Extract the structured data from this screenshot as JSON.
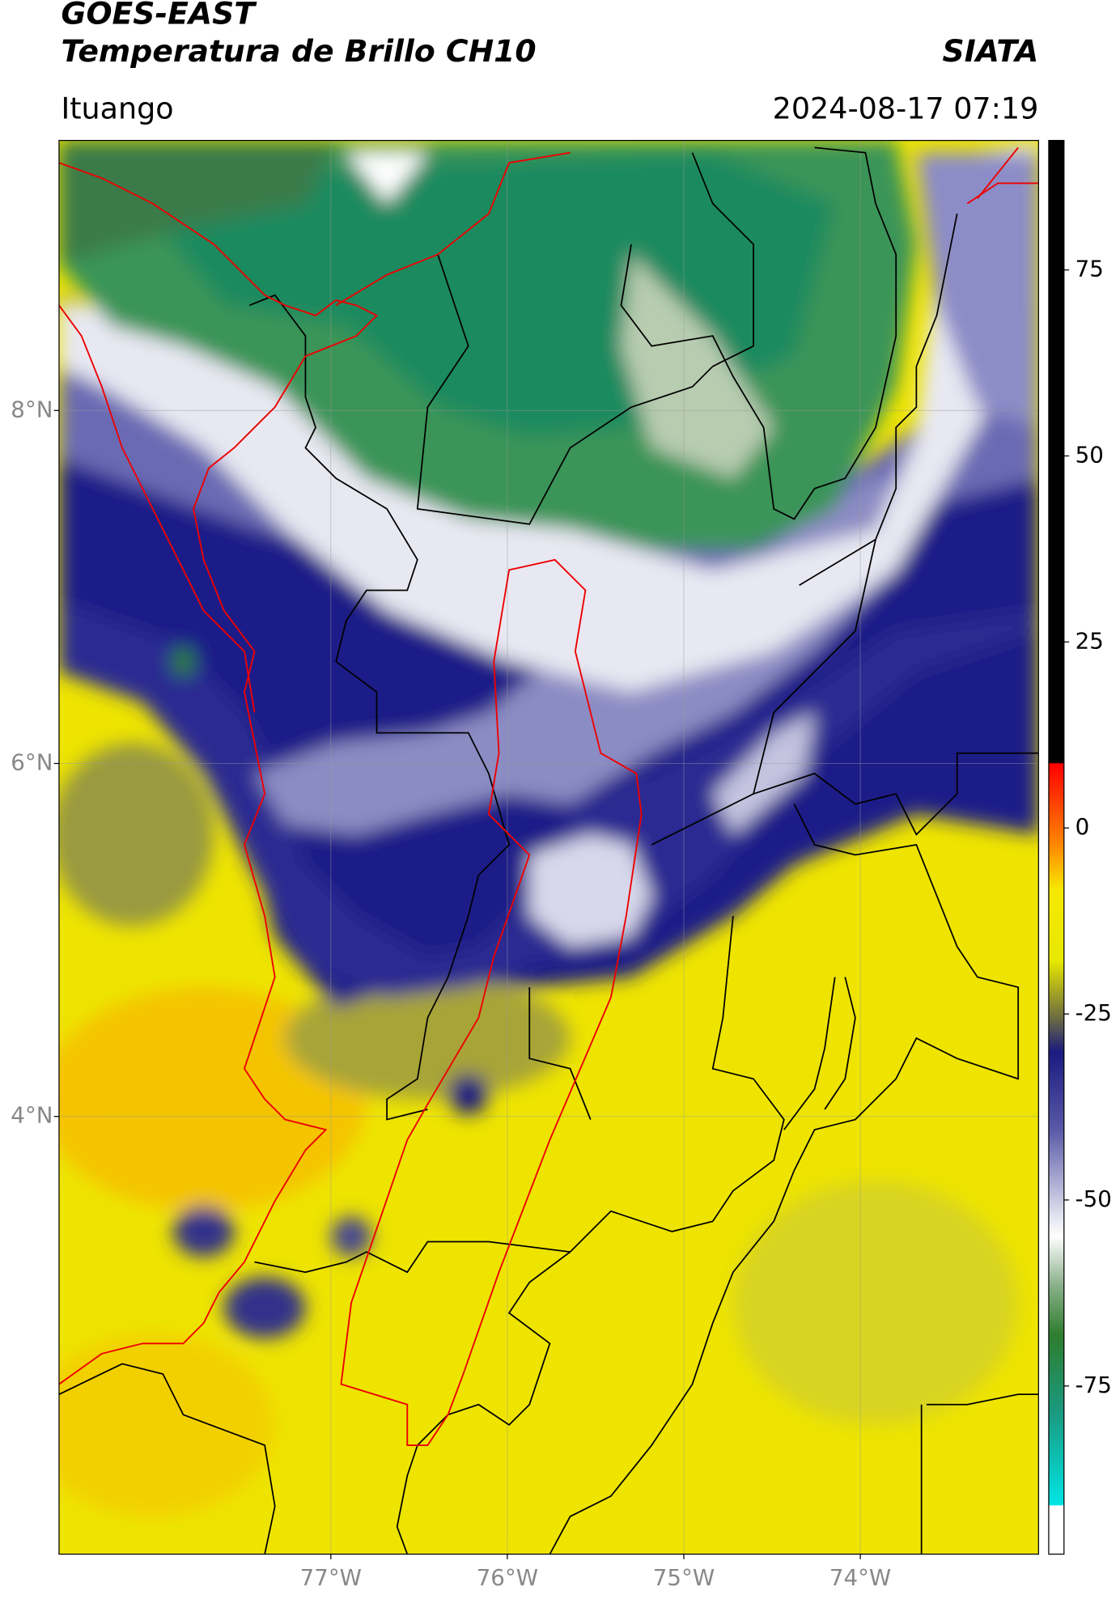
{
  "header": {
    "title": "GOES-EAST",
    "subtitle": "Temperatura de Brillo CH10",
    "source": "SIATA",
    "location": "Ituango",
    "datetime": "2024-08-17 07:19"
  },
  "map": {
    "lat_range": [
      1.52,
      9.53
    ],
    "lon_range": [
      -78.54,
      -72.99
    ],
    "lat_ticks": [
      {
        "value": 8,
        "label": "8°N"
      },
      {
        "value": 6,
        "label": "6°N"
      },
      {
        "value": 4,
        "label": "4°N"
      }
    ],
    "lon_ticks": [
      {
        "value": -77,
        "label": "77°W"
      },
      {
        "value": -76,
        "label": "76°W"
      },
      {
        "value": -75,
        "label": "75°W"
      },
      {
        "value": -74,
        "label": "74°W"
      }
    ]
  },
  "colorbar": {
    "range": [
      -97.6,
      92.4
    ],
    "ticks": [
      75,
      50,
      25,
      0,
      -25,
      -50,
      -75
    ]
  }
}
